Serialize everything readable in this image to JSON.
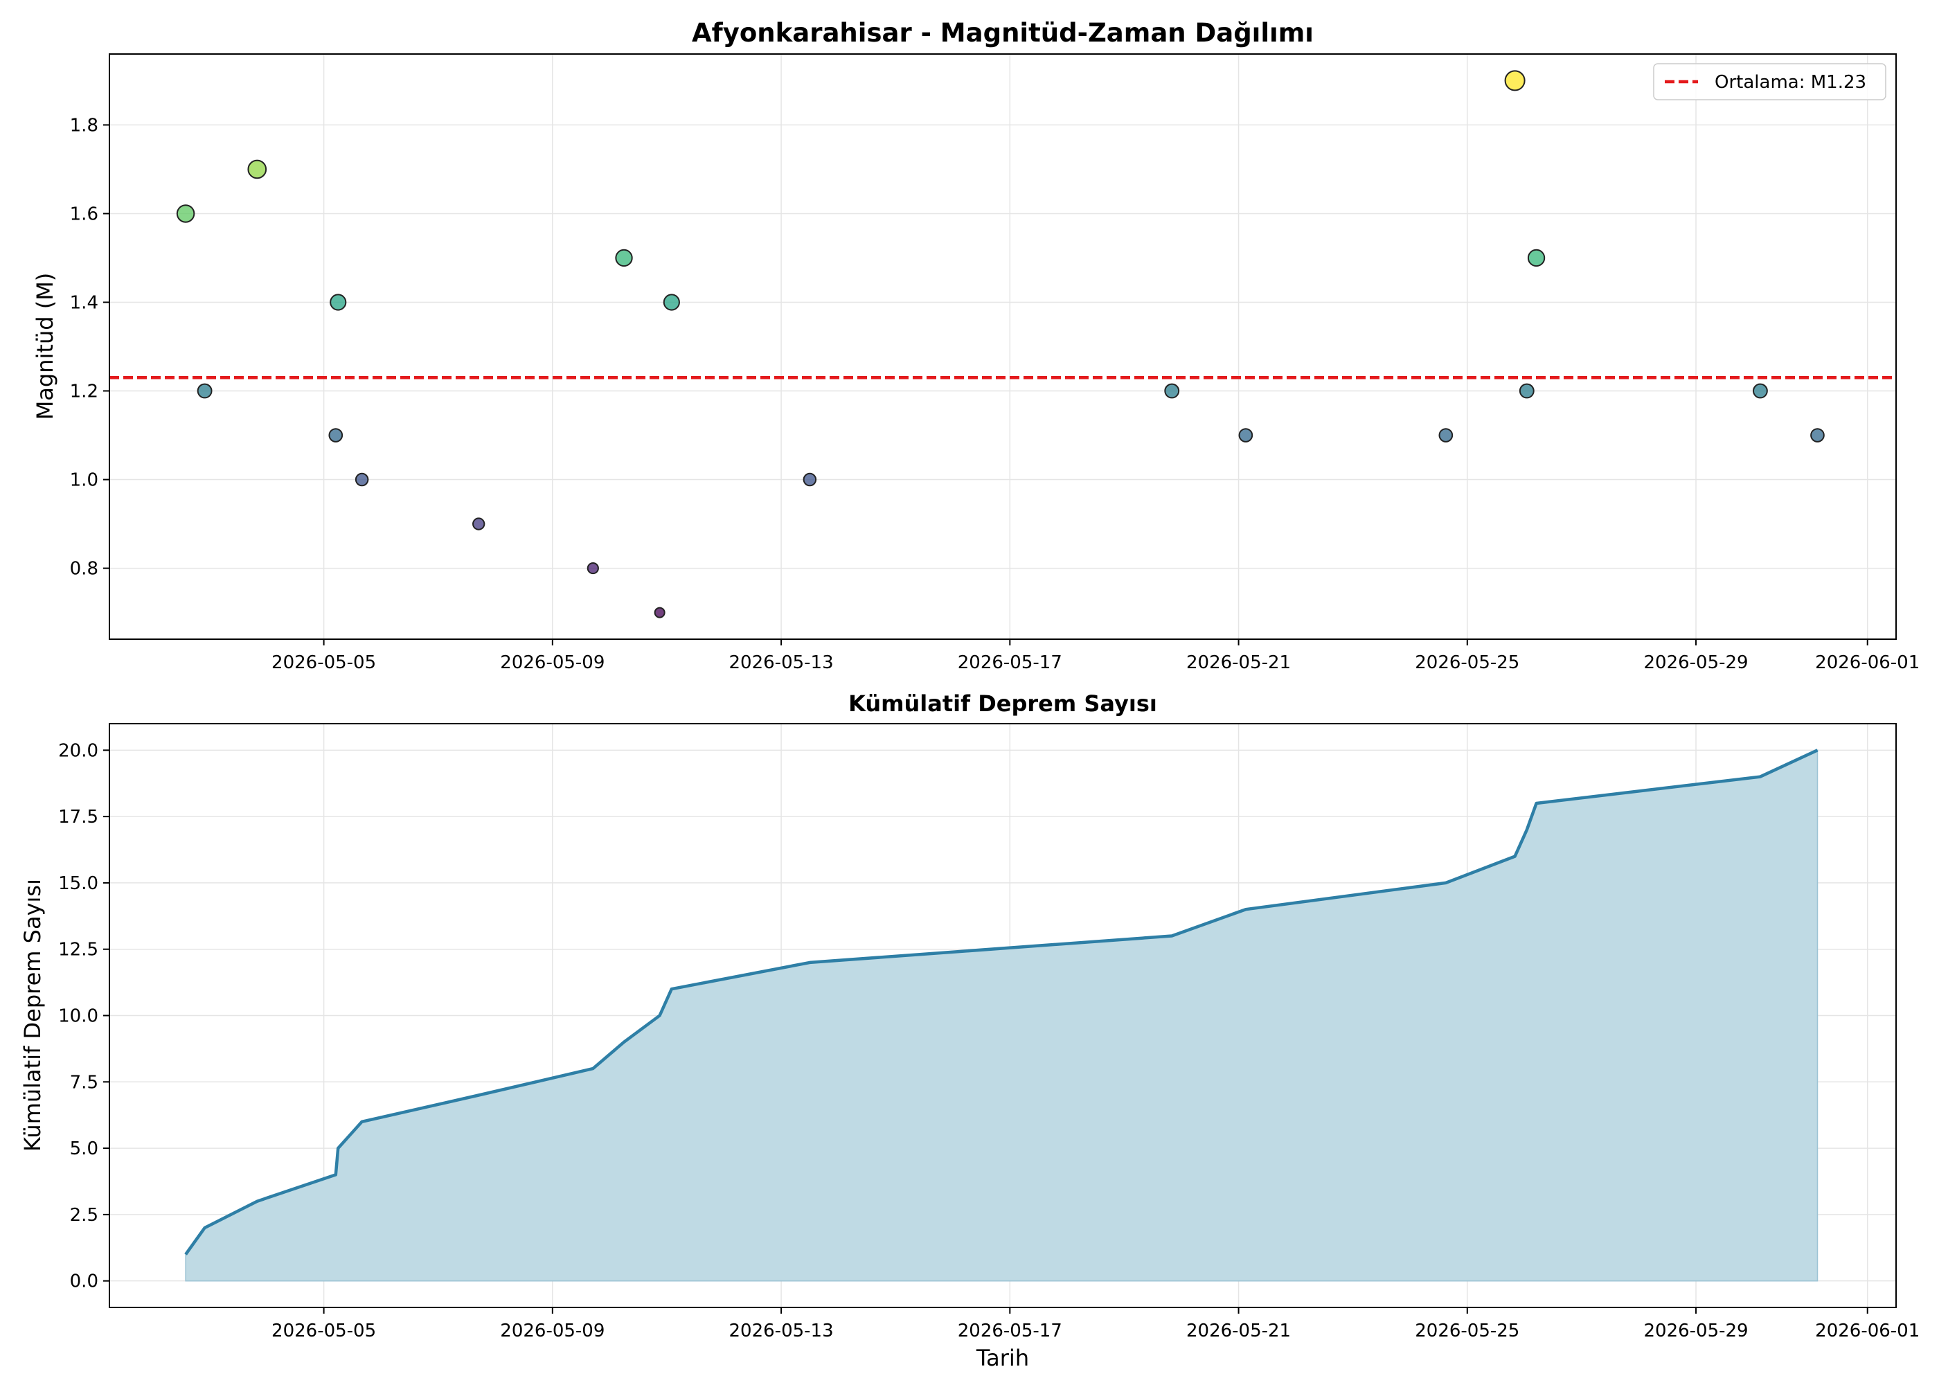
{
  "chart_data": [
    {
      "type": "scatter",
      "title": "Afyonkarahisar - Magnitüd-Zaman Dağılımı",
      "xlabel": "",
      "ylabel": "Magnitüd (M)",
      "xlim": [
        "2026-05-01T06:00",
        "2026-06-01T12:00"
      ],
      "ylim": [
        0.64,
        1.96
      ],
      "grid": true,
      "legend": {
        "position": "top-right",
        "entries": [
          "Ortalama: M1.23"
        ]
      },
      "mean_line": {
        "value": 1.23,
        "label": "Ortalama: M1.23",
        "color": "#e41a1c",
        "style": "dashed"
      },
      "x_ticks": [
        "2026-05-05",
        "2026-05-09",
        "2026-05-13",
        "2026-05-17",
        "2026-05-21",
        "2026-05-25",
        "2026-05-29",
        "2026-06-01"
      ],
      "y_ticks": [
        "0.8",
        "1.0",
        "1.2",
        "1.4",
        "1.6",
        "1.8"
      ],
      "colormap": "viridis",
      "points": [
        {
          "t": "2026-05-02T14:00",
          "m": 1.6
        },
        {
          "t": "2026-05-02T22:00",
          "m": 1.2
        },
        {
          "t": "2026-05-03T20:00",
          "m": 1.7
        },
        {
          "t": "2026-05-05T05:00",
          "m": 1.1
        },
        {
          "t": "2026-05-05T06:00",
          "m": 1.4
        },
        {
          "t": "2026-05-05T16:00",
          "m": 1.0
        },
        {
          "t": "2026-05-07T17:00",
          "m": 0.9
        },
        {
          "t": "2026-05-09T17:00",
          "m": 0.8
        },
        {
          "t": "2026-05-10T06:00",
          "m": 1.5
        },
        {
          "t": "2026-05-10T21:00",
          "m": 0.7
        },
        {
          "t": "2026-05-11T02:00",
          "m": 1.4
        },
        {
          "t": "2026-05-13T12:00",
          "m": 1.0
        },
        {
          "t": "2026-05-19T20:00",
          "m": 1.2
        },
        {
          "t": "2026-05-21T03:00",
          "m": 1.1
        },
        {
          "t": "2026-05-24T15:00",
          "m": 1.1
        },
        {
          "t": "2026-05-25T20:00",
          "m": 1.9
        },
        {
          "t": "2026-05-26T01:00",
          "m": 1.2
        },
        {
          "t": "2026-05-26T05:00",
          "m": 1.5
        },
        {
          "t": "2026-05-30T03:00",
          "m": 1.2
        },
        {
          "t": "2026-05-31T03:00",
          "m": 1.1
        }
      ]
    },
    {
      "type": "area",
      "title": "Kümülatif Deprem Sayısı",
      "xlabel": "Tarih",
      "ylabel": "Kümülatif Deprem Sayısı",
      "xlim": [
        "2026-05-01T06:00",
        "2026-06-01T12:00"
      ],
      "ylim": [
        -1,
        21
      ],
      "grid": true,
      "line_color": "#2e7fa6",
      "fill_color": "#bfdae4",
      "x_ticks": [
        "2026-05-05",
        "2026-05-09",
        "2026-05-13",
        "2026-05-17",
        "2026-05-21",
        "2026-05-25",
        "2026-05-29",
        "2026-06-01"
      ],
      "y_ticks": [
        "0.0",
        "2.5",
        "5.0",
        "7.5",
        "10.0",
        "12.5",
        "15.0",
        "17.5",
        "20.0"
      ],
      "points": [
        {
          "t": "2026-05-02T14:00",
          "count": 1
        },
        {
          "t": "2026-05-02T22:00",
          "count": 2
        },
        {
          "t": "2026-05-03T20:00",
          "count": 3
        },
        {
          "t": "2026-05-05T05:00",
          "count": 4
        },
        {
          "t": "2026-05-05T06:00",
          "count": 5
        },
        {
          "t": "2026-05-05T16:00",
          "count": 6
        },
        {
          "t": "2026-05-07T17:00",
          "count": 7
        },
        {
          "t": "2026-05-09T17:00",
          "count": 8
        },
        {
          "t": "2026-05-10T06:00",
          "count": 9
        },
        {
          "t": "2026-05-10T21:00",
          "count": 10
        },
        {
          "t": "2026-05-11T02:00",
          "count": 11
        },
        {
          "t": "2026-05-13T12:00",
          "count": 12
        },
        {
          "t": "2026-05-19T20:00",
          "count": 13
        },
        {
          "t": "2026-05-21T03:00",
          "count": 14
        },
        {
          "t": "2026-05-24T15:00",
          "count": 15
        },
        {
          "t": "2026-05-25T20:00",
          "count": 16
        },
        {
          "t": "2026-05-26T01:00",
          "count": 17
        },
        {
          "t": "2026-05-26T05:00",
          "count": 18
        },
        {
          "t": "2026-05-30T03:00",
          "count": 19
        },
        {
          "t": "2026-05-31T03:00",
          "count": 20
        }
      ]
    }
  ]
}
